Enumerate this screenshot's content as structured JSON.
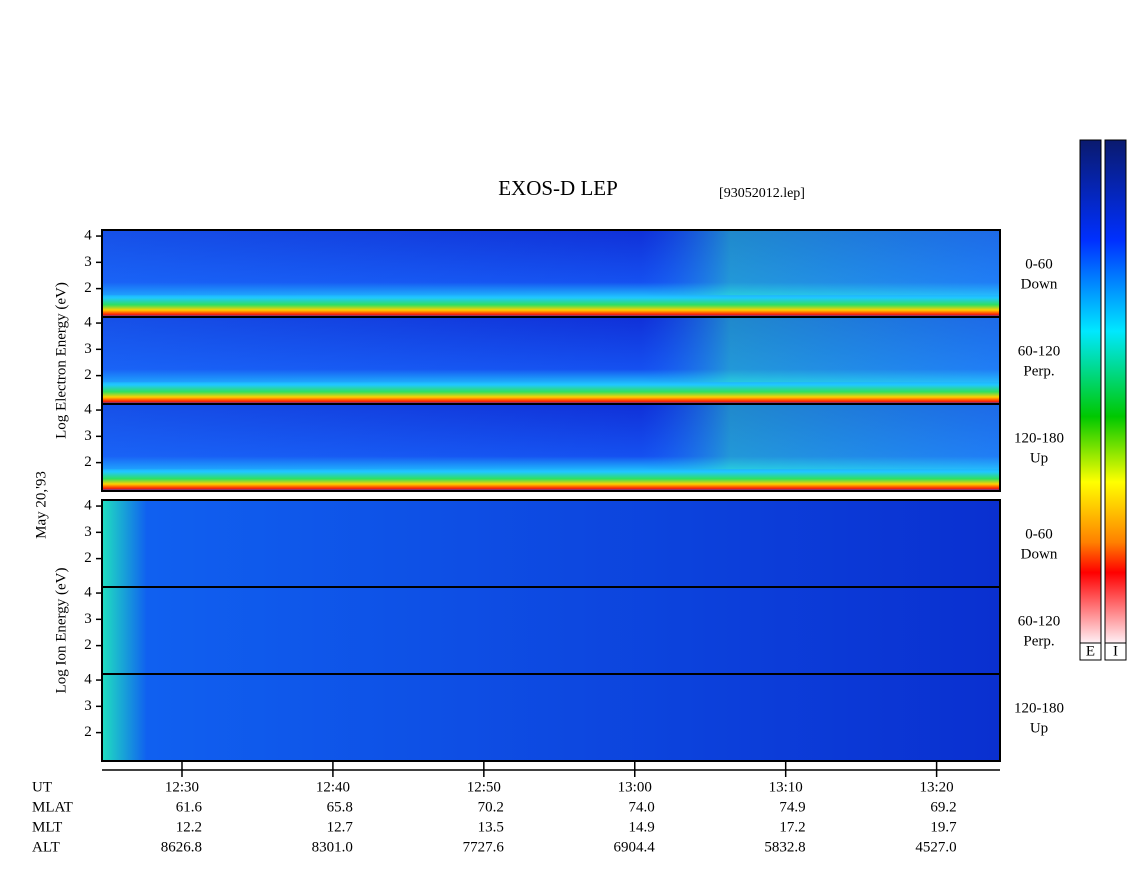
{
  "title": "EXOS-D LEP",
  "file": "[93052012.lep]",
  "date": "May 20,'93",
  "colorbars": [
    "E",
    "I"
  ],
  "ylim": [
    0.92,
    4.23
  ],
  "yticks": [
    2,
    3,
    4
  ],
  "xlim": [
    744.7,
    804.2
  ],
  "xticks": [
    {
      "value": 750,
      "label": "12:30"
    },
    {
      "value": 760,
      "label": "12:40"
    },
    {
      "value": 770,
      "label": "12:50"
    },
    {
      "value": 780,
      "label": "13:00"
    },
    {
      "value": 790,
      "label": "13:10"
    },
    {
      "value": 800,
      "label": "13:20"
    }
  ],
  "groups": [
    {
      "ylabel": "Log Electron Energy (eV)",
      "panels": [
        {
          "angle": "0-60",
          "dir": "Down"
        },
        {
          "angle": "60-120",
          "dir": "Perp."
        },
        {
          "angle": "120-180",
          "dir": "Up"
        }
      ]
    },
    {
      "ylabel": "Log Ion Energy (eV)",
      "panels": [
        {
          "angle": "0-60",
          "dir": "Down"
        },
        {
          "angle": "60-120",
          "dir": "Perp."
        },
        {
          "angle": "120-180",
          "dir": "Up"
        }
      ]
    }
  ],
  "ephemeris": [
    {
      "name": "UT"
    },
    {
      "name": "MLAT",
      "values": [
        "61.6",
        "65.8",
        "70.2",
        "74.0",
        "74.9",
        "69.2"
      ]
    },
    {
      "name": "MLT",
      "values": [
        "12.2",
        "12.7",
        "13.5",
        "14.9",
        "17.2",
        "19.7"
      ]
    },
    {
      "name": "ALT",
      "values": [
        "8626.8",
        "8301.0",
        "7727.6",
        "6904.4",
        "5832.8",
        "4527.0"
      ]
    }
  ]
}
